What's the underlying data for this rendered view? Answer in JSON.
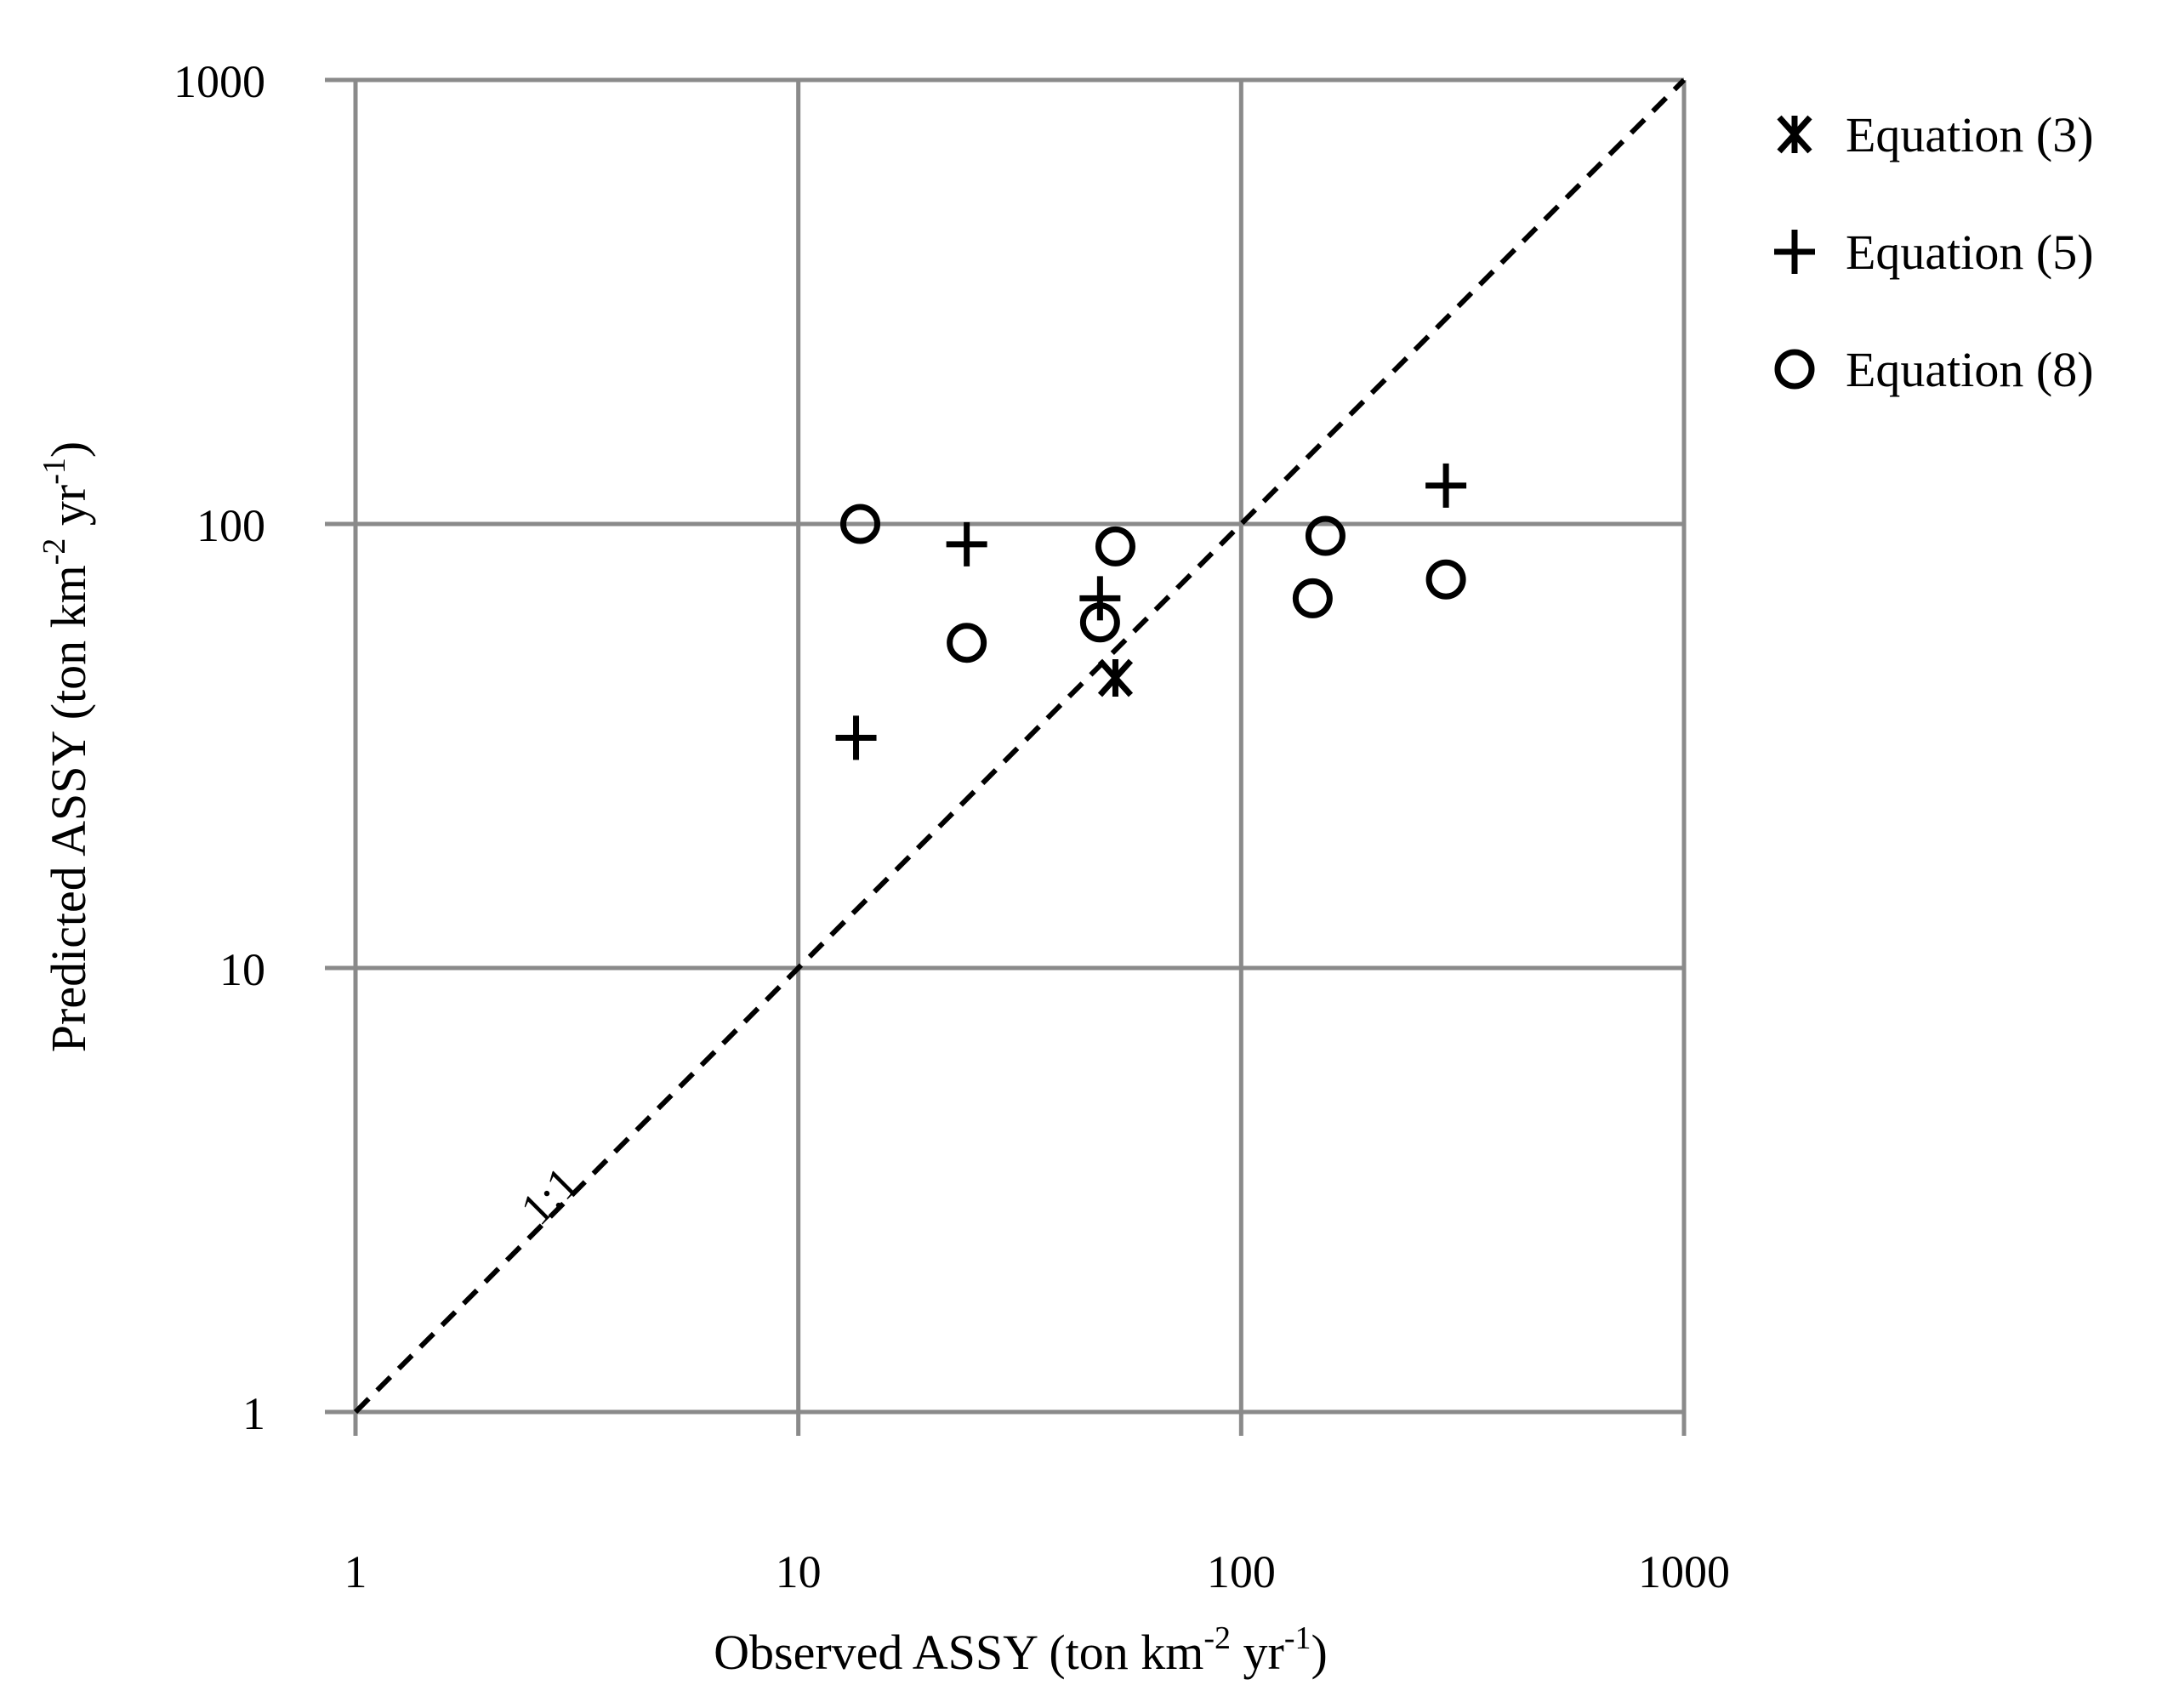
{
  "chart_data": {
    "type": "scatter",
    "xlabel": "Observed ASSY (ton km",
    "xlabel_sup1": "-2",
    "xlabel_mid": " yr",
    "xlabel_sup2": "-1",
    "xlabel_end": ")",
    "ylabel": "Predicted ASSY (ton km",
    "ylabel_sup1": "-2",
    "ylabel_mid": " yr",
    "ylabel_sup2": "-1",
    "ylabel_end": ")",
    "x_scale": "log",
    "y_scale": "log",
    "xlim": [
      1,
      1000
    ],
    "ylim": [
      1,
      1000
    ],
    "x_ticks": [
      "1",
      "10",
      "100",
      "1000"
    ],
    "y_ticks": [
      "1",
      "10",
      "100",
      "1000"
    ],
    "grid": true,
    "legend_position": "top-right outside",
    "reference_line": {
      "label": "1:1",
      "from": [
        1,
        1
      ],
      "to": [
        1000,
        1000
      ],
      "style": "dashed"
    },
    "series": [
      {
        "name": "Equation (3)",
        "marker": "asterisk",
        "points": [
          [
            52,
            45
          ]
        ]
      },
      {
        "name": "Equation (5)",
        "marker": "plus",
        "points": [
          [
            13.5,
            33
          ],
          [
            24,
            90
          ],
          [
            48,
            68
          ],
          [
            290,
            122
          ]
        ]
      },
      {
        "name": "Equation (8)",
        "marker": "circle",
        "points": [
          [
            13.8,
            100
          ],
          [
            24,
            54
          ],
          [
            48,
            60
          ],
          [
            52,
            89
          ],
          [
            145,
            68
          ],
          [
            155,
            94
          ],
          [
            290,
            75
          ]
        ]
      }
    ]
  }
}
